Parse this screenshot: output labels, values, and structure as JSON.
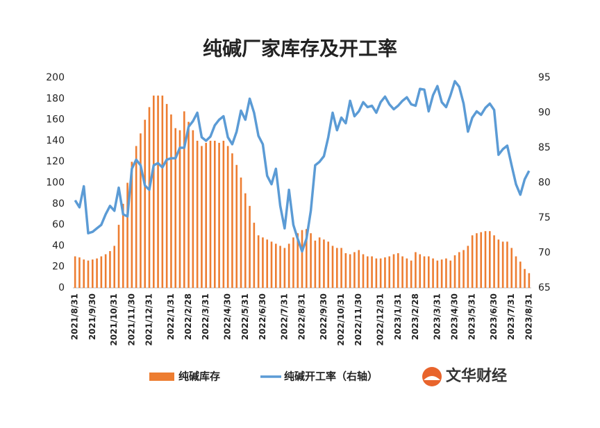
{
  "chart_data": {
    "type": "bar_line",
    "title": "纯碱厂家库存及开工率",
    "watermark": "文华财经",
    "categories": [
      "2021/8/31",
      null,
      null,
      null,
      "2021/9/30",
      null,
      null,
      null,
      null,
      "2021/10/31",
      null,
      null,
      null,
      "2021/11/30",
      null,
      null,
      null,
      "2021/12/31",
      null,
      null,
      null,
      null,
      "2022/1/31",
      null,
      null,
      null,
      "2022/2/28",
      null,
      null,
      null,
      "2022/3/31",
      null,
      null,
      null,
      null,
      "2022/4/30",
      null,
      null,
      null,
      "2022/5/31",
      null,
      null,
      null,
      "2022/6/30",
      null,
      null,
      null,
      null,
      "2022/7/31",
      null,
      null,
      null,
      "2022/8/31",
      null,
      null,
      null,
      null,
      "2022/9/30",
      null,
      null,
      null,
      "2022/10/31",
      null,
      null,
      null,
      "2022/11/30",
      null,
      null,
      null,
      null,
      "2022/12/31",
      null,
      null,
      null,
      "2023/1/31",
      null,
      null,
      null,
      "2023/2/28",
      null,
      null,
      null,
      null,
      "2023/3/31",
      null,
      null,
      null,
      "2023/4/30",
      null,
      null,
      null,
      "2023/5/31",
      null,
      null,
      null,
      null,
      "2023/6/30",
      null,
      null,
      null,
      "2023/7/31",
      null,
      null,
      null,
      "2023/8/31"
    ],
    "series": [
      {
        "name": "纯碱库存",
        "color": "#ed7d31",
        "kind": "bar",
        "axis": "y",
        "values": [
          30,
          29,
          27,
          26,
          27,
          28,
          30,
          32,
          35,
          40,
          60,
          80,
          100,
          120,
          135,
          147,
          160,
          172,
          183,
          183,
          183,
          175,
          165,
          152,
          150,
          168,
          158,
          150,
          140,
          135,
          138,
          140,
          140,
          138,
          140,
          135,
          128,
          117,
          105,
          90,
          78,
          62,
          50,
          48,
          46,
          44,
          42,
          40,
          38,
          42,
          48,
          52,
          55,
          56,
          52,
          45,
          48,
          46,
          44,
          40,
          38,
          38,
          33,
          32,
          34,
          36,
          32,
          30,
          30,
          28,
          28,
          29,
          30,
          32,
          33,
          30,
          28,
          26,
          34,
          32,
          30,
          30,
          28,
          26,
          27,
          28,
          26,
          31,
          34,
          36,
          40,
          50,
          52,
          53,
          54,
          54,
          50,
          46,
          44,
          44,
          38,
          30,
          25,
          18,
          14
        ]
      },
      {
        "name": "纯碱开工率（右轴）",
        "color": "#5b9bd5",
        "kind": "line",
        "axis": "y2",
        "values": [
          77.5,
          76.5,
          79.5,
          72.8,
          73,
          73.5,
          74,
          75.5,
          76.7,
          76,
          79.3,
          75.5,
          75.2,
          82,
          83.3,
          82.5,
          79.6,
          79,
          82.5,
          82.8,
          82.2,
          83.3,
          83.5,
          83.5,
          85,
          85,
          88,
          88.8,
          90,
          86.5,
          86,
          86.6,
          88.2,
          89,
          89.5,
          86.5,
          85.5,
          87.3,
          90.3,
          89,
          92,
          90,
          86.7,
          85.5,
          81,
          79.8,
          82,
          76.7,
          73.5,
          79,
          74,
          72,
          70.2,
          72,
          76,
          82.5,
          83,
          83.8,
          86.5,
          90,
          87.5,
          89.3,
          88.5,
          91.7,
          89.5,
          90.2,
          91.5,
          90.8,
          91,
          90,
          91.5,
          92.3,
          91.2,
          90.5,
          91,
          91.7,
          92.2,
          91.2,
          91,
          93.4,
          93.3,
          90.2,
          92.5,
          93.8,
          91.5,
          90.8,
          92.5,
          94.5,
          93.7,
          91.3,
          87.3,
          89.3,
          90.2,
          89.7,
          90.7,
          91.3,
          90.4,
          84,
          84.8,
          85.3,
          82.5,
          79.8,
          78.3,
          80.5,
          81.7
        ]
      }
    ],
    "ylim": [
      0,
      200
    ],
    "yticks": [
      0,
      20,
      40,
      60,
      80,
      100,
      120,
      140,
      160,
      180,
      200
    ],
    "y2lim": [
      65,
      95
    ],
    "y2ticks": [
      65,
      70,
      75,
      80,
      85,
      90,
      95
    ],
    "grid": false
  }
}
